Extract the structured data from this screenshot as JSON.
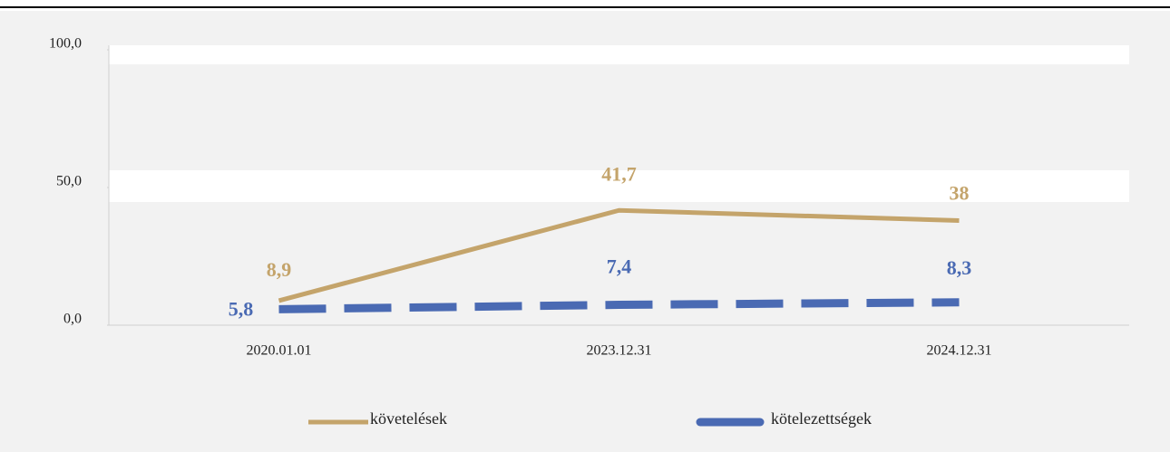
{
  "chart_data": {
    "type": "line",
    "categories": [
      "2020.01.01",
      "2023.12.31",
      "2024.12.31"
    ],
    "series": [
      {
        "name": "követelések",
        "color": "#c4a46b",
        "dash": false,
        "values": [
          8.9,
          41.7,
          38
        ],
        "value_labels": [
          "8,9",
          "41,7",
          "38"
        ]
      },
      {
        "name": "kötelezettségek",
        "color": "#4a6ab3",
        "dash": true,
        "values": [
          5.8,
          7.4,
          8.3
        ],
        "value_labels": [
          "5,8",
          "7,4",
          "8,3"
        ]
      }
    ],
    "ylim": [
      0,
      100
    ],
    "yticks": [
      {
        "value": 0,
        "label": "0,0"
      },
      {
        "value": 50,
        "label": "50,0"
      },
      {
        "value": 100,
        "label": "100,0"
      }
    ],
    "legend": "bottom"
  }
}
